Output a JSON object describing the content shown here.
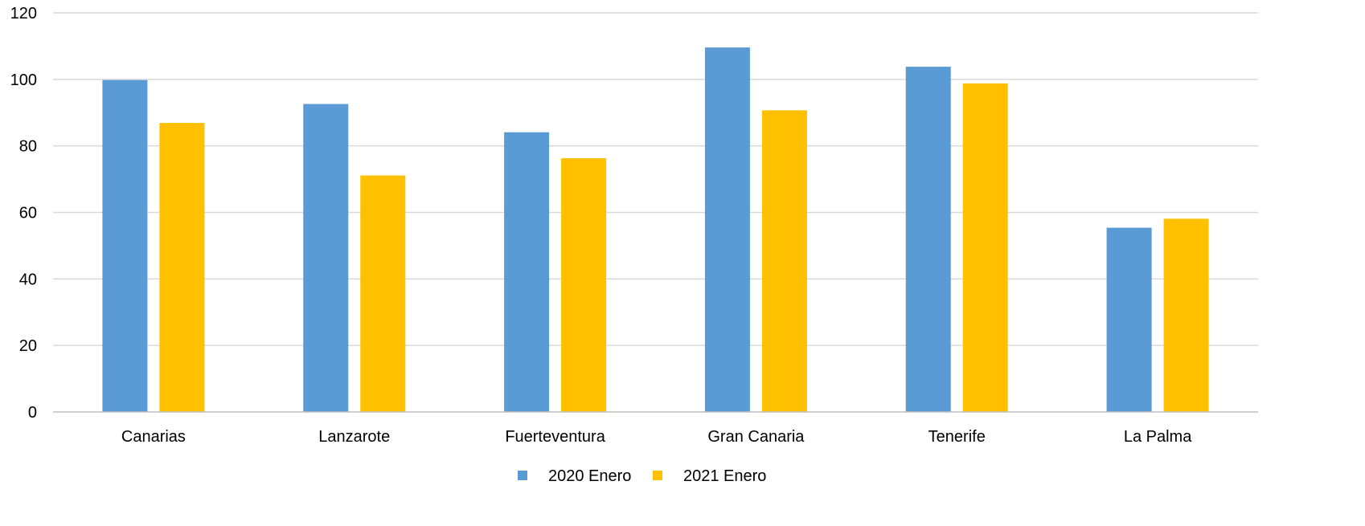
{
  "chart_data": {
    "type": "bar",
    "categories": [
      "Canarias",
      "Lanzarote",
      "Fuerteventura",
      "Gran Canaria",
      "Tenerife",
      "La Palma"
    ],
    "series": [
      {
        "name": "2020 Enero",
        "values": [
          99.8,
          92.6,
          84.1,
          109.6,
          103.8,
          55.4
        ]
      },
      {
        "name": "2021 Enero",
        "values": [
          86.9,
          71.1,
          76.3,
          90.7,
          98.8,
          58.1
        ]
      }
    ],
    "yticks": [
      "0",
      "20",
      "40",
      "60",
      "80",
      "100",
      "120"
    ],
    "ylim": [
      0,
      120
    ],
    "grid": true,
    "legend_position": "bottom",
    "colors": {
      "series0": "#5B9BD5",
      "series1": "#FFC000",
      "grid": "#D9D9D9",
      "axis": "#BFBFBF"
    }
  }
}
